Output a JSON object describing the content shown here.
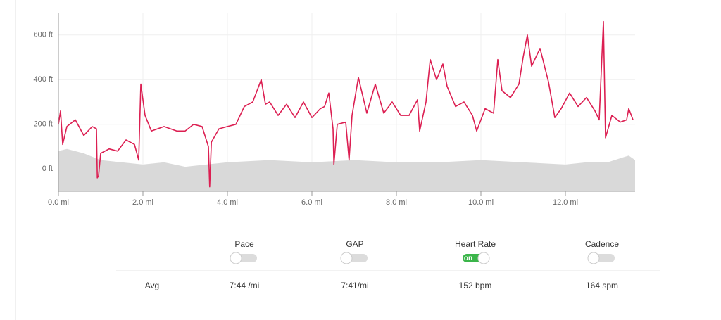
{
  "chart_data": {
    "type": "line",
    "xlim": [
      0,
      13.65
    ],
    "ylim": [
      -100,
      700
    ],
    "xticks": [
      {
        "value": 0,
        "label": "0.0 mi"
      },
      {
        "value": 2,
        "label": "2.0 mi"
      },
      {
        "value": 4,
        "label": "4.0 mi"
      },
      {
        "value": 6,
        "label": "6.0 mi"
      },
      {
        "value": 8,
        "label": "8.0 mi"
      },
      {
        "value": 10,
        "label": "10.0 mi"
      },
      {
        "value": 12,
        "label": "12.0 mi"
      }
    ],
    "yticks": [
      {
        "value": 0,
        "label": "0 ft"
      },
      {
        "value": 200,
        "label": "200 ft"
      },
      {
        "value": 400,
        "label": "400 ft"
      },
      {
        "value": 600,
        "label": "600 ft"
      }
    ],
    "grid": true,
    "series": [
      {
        "style": "area",
        "color": "#d9d9d9",
        "x": [
          0,
          0.2,
          0.6,
          1.0,
          1.5,
          2.0,
          2.5,
          3.0,
          3.5,
          4.0,
          5.0,
          6.0,
          7.0,
          8.0,
          9.0,
          10.0,
          11.0,
          12.0,
          12.5,
          13.0,
          13.5,
          13.65
        ],
        "values": [
          80,
          90,
          70,
          40,
          30,
          20,
          30,
          10,
          20,
          30,
          40,
          30,
          40,
          30,
          30,
          40,
          30,
          20,
          30,
          30,
          60,
          40
        ]
      },
      {
        "style": "line",
        "color": "#dc1f52",
        "x": [
          0,
          0.05,
          0.1,
          0.2,
          0.4,
          0.6,
          0.8,
          0.9,
          0.92,
          0.95,
          1.0,
          1.2,
          1.4,
          1.6,
          1.8,
          1.9,
          1.95,
          2.05,
          2.2,
          2.5,
          2.8,
          3.0,
          3.2,
          3.4,
          3.55,
          3.58,
          3.62,
          3.8,
          4.0,
          4.2,
          4.4,
          4.6,
          4.8,
          4.9,
          5.0,
          5.2,
          5.4,
          5.6,
          5.8,
          6.0,
          6.2,
          6.3,
          6.4,
          6.5,
          6.52,
          6.6,
          6.8,
          6.88,
          6.95,
          7.1,
          7.3,
          7.5,
          7.7,
          7.9,
          8.1,
          8.3,
          8.5,
          8.55,
          8.7,
          8.8,
          8.95,
          9.1,
          9.2,
          9.4,
          9.6,
          9.8,
          9.9,
          10.1,
          10.3,
          10.4,
          10.5,
          10.7,
          10.9,
          11.0,
          11.1,
          11.2,
          11.4,
          11.6,
          11.75,
          11.9,
          12.1,
          12.3,
          12.5,
          12.7,
          12.8,
          12.9,
          12.95,
          13.1,
          13.3,
          13.45,
          13.5,
          13.6
        ],
        "values": [
          200,
          260,
          110,
          190,
          220,
          150,
          190,
          180,
          -40,
          -30,
          70,
          90,
          80,
          130,
          110,
          40,
          380,
          240,
          170,
          190,
          170,
          170,
          200,
          190,
          100,
          -80,
          120,
          180,
          190,
          200,
          280,
          300,
          400,
          290,
          300,
          240,
          290,
          230,
          300,
          230,
          270,
          280,
          340,
          180,
          20,
          200,
          210,
          40,
          240,
          410,
          250,
          380,
          250,
          300,
          240,
          240,
          310,
          170,
          300,
          490,
          400,
          470,
          370,
          280,
          300,
          240,
          170,
          270,
          250,
          490,
          350,
          320,
          380,
          500,
          600,
          460,
          540,
          390,
          230,
          270,
          340,
          280,
          320,
          260,
          220,
          660,
          140,
          240,
          210,
          220,
          270,
          220
        ]
      }
    ]
  },
  "toggles": [
    {
      "label": "Pace",
      "on": false
    },
    {
      "label": "GAP",
      "on": false
    },
    {
      "label": "Heart Rate",
      "on": true
    },
    {
      "label": "Cadence",
      "on": false
    }
  ],
  "on_label": "on",
  "avg": {
    "label": "Avg",
    "values": [
      "7:44 /mi",
      "7:41/mi",
      "152 bpm",
      "164 spm"
    ]
  }
}
